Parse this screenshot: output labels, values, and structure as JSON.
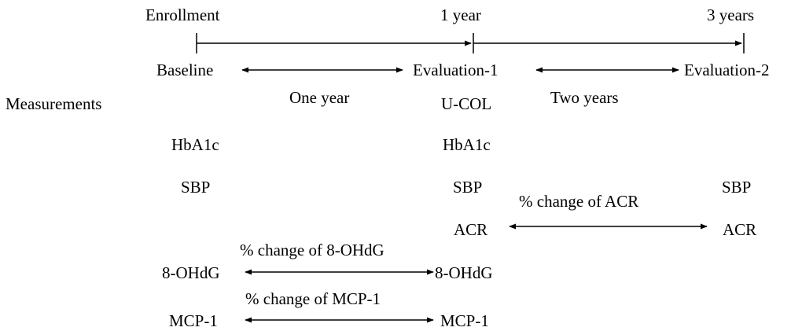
{
  "timeline": {
    "enrollment": "Enrollment",
    "one_year": "1 year",
    "three_years": "3 years"
  },
  "phases": {
    "baseline": "Baseline",
    "evaluation_1": "Evaluation-1",
    "evaluation_2": "Evaluation-2",
    "interval_1": "One year",
    "interval_2": "Two years"
  },
  "measurements": {
    "heading": "Measurements",
    "baseline": {
      "hba1c": "HbA1c",
      "sbp": "SBP",
      "ohdg": "8-OHdG",
      "mcp1": "MCP-1"
    },
    "evaluation_1": {
      "ucol": "U-COL",
      "hba1c": "HbA1c",
      "sbp": "SBP",
      "acr": "ACR",
      "ohdg": "8-OHdG",
      "mcp1": "MCP-1"
    },
    "evaluation_2": {
      "sbp": "SBP",
      "acr": "ACR"
    }
  },
  "changes": {
    "acr": "% change of ACR",
    "ohdg": "% change of 8-OHdG",
    "mcp1": "% change of MCP-1"
  },
  "colors": {
    "ink": "#000000",
    "background": "#ffffff"
  }
}
